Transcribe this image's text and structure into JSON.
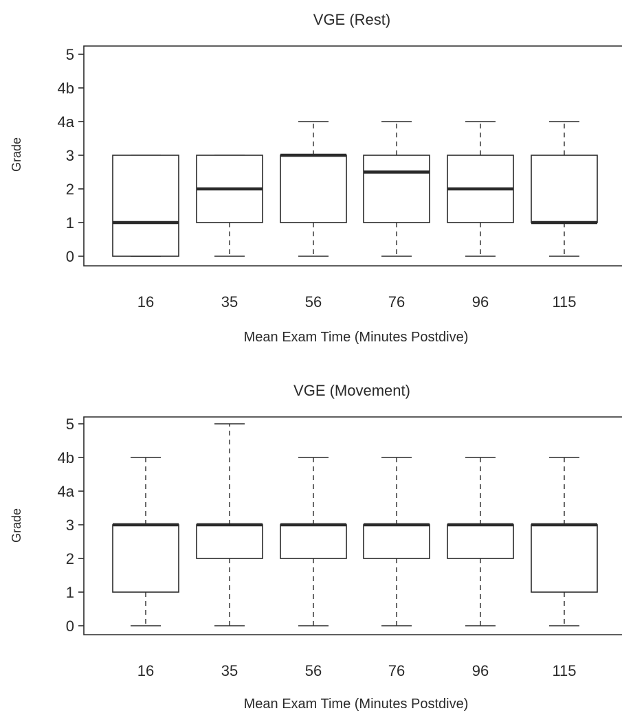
{
  "chart_data": [
    {
      "type": "boxplot",
      "title": "VGE (Rest)",
      "xlabel": "Mean Exam Time (Minutes Postdive)",
      "ylabel": "Grade",
      "categories": [
        "16",
        "35",
        "56",
        "76",
        "96",
        "115"
      ],
      "y_ticks": [
        {
          "value": 0,
          "label": "0"
        },
        {
          "value": 1,
          "label": "1"
        },
        {
          "value": 2,
          "label": "2"
        },
        {
          "value": 3,
          "label": "3"
        },
        {
          "value": 4,
          "label": "4a"
        },
        {
          "value": 5,
          "label": "4b"
        },
        {
          "value": 6,
          "label": "5"
        }
      ],
      "boxes": [
        {
          "category": "16",
          "whisker_low": 0,
          "q1": 0,
          "median": 1,
          "q3": 3,
          "whisker_high": 3
        },
        {
          "category": "35",
          "whisker_low": 0,
          "q1": 1,
          "median": 2,
          "q3": 3,
          "whisker_high": 3
        },
        {
          "category": "56",
          "whisker_low": 0,
          "q1": 1,
          "median": 3,
          "q3": 3,
          "whisker_high": 4
        },
        {
          "category": "76",
          "whisker_low": 0,
          "q1": 1,
          "median": 2.5,
          "q3": 3,
          "whisker_high": 4
        },
        {
          "category": "96",
          "whisker_low": 0,
          "q1": 1,
          "median": 2,
          "q3": 3,
          "whisker_high": 4
        },
        {
          "category": "115",
          "whisker_low": 0,
          "q1": 1,
          "median": 1,
          "q3": 3,
          "whisker_high": 4
        }
      ]
    },
    {
      "type": "boxplot",
      "title": "VGE (Movement)",
      "xlabel": "Mean Exam Time (Minutes Postdive)",
      "ylabel": "Grade",
      "categories": [
        "16",
        "35",
        "56",
        "76",
        "96",
        "115"
      ],
      "y_ticks": [
        {
          "value": 0,
          "label": "0"
        },
        {
          "value": 1,
          "label": "1"
        },
        {
          "value": 2,
          "label": "2"
        },
        {
          "value": 3,
          "label": "3"
        },
        {
          "value": 4,
          "label": "4a"
        },
        {
          "value": 5,
          "label": "4b"
        },
        {
          "value": 6,
          "label": "5"
        }
      ],
      "boxes": [
        {
          "category": "16",
          "whisker_low": 0,
          "q1": 1,
          "median": 3,
          "q3": 3,
          "whisker_high": 5
        },
        {
          "category": "35",
          "whisker_low": 0,
          "q1": 2,
          "median": 3,
          "q3": 3,
          "whisker_high": 6
        },
        {
          "category": "56",
          "whisker_low": 0,
          "q1": 2,
          "median": 3,
          "q3": 3,
          "whisker_high": 5
        },
        {
          "category": "76",
          "whisker_low": 0,
          "q1": 2,
          "median": 3,
          "q3": 3,
          "whisker_high": 5
        },
        {
          "category": "96",
          "whisker_low": 0,
          "q1": 2,
          "median": 3,
          "q3": 3,
          "whisker_high": 5
        },
        {
          "category": "115",
          "whisker_low": 0,
          "q1": 1,
          "median": 3,
          "q3": 3,
          "whisker_high": 5
        }
      ]
    }
  ]
}
